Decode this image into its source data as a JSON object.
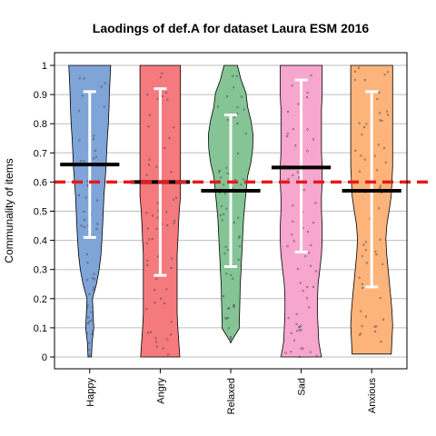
{
  "chart_data": {
    "type": "violin",
    "title": "Laodings of def.A for dataset Laura ESM 2016",
    "xlabel": "",
    "ylabel": "Communality of items",
    "ylim": [
      0,
      1
    ],
    "yticks": [
      "0",
      "0.1",
      "0.2",
      "0.3",
      "0.4",
      "0.5",
      "0.6",
      "0.7",
      "0.8",
      "0.9",
      "1"
    ],
    "grid": true,
    "reference_line": {
      "value": 0.6,
      "color": "#e41a1c",
      "style": "dashed"
    },
    "categories": [
      "Happy",
      "Angry",
      "Relaxed",
      "Sad",
      "Anxious"
    ],
    "series": [
      {
        "category": "Happy",
        "color": "#7fa4d8",
        "mean": 0.66,
        "ci_low": 0.41,
        "ci_high": 0.91,
        "min": 0.0,
        "max": 1.0,
        "density": [
          0.05,
          0.07,
          0.12,
          0.1,
          0.08,
          0.2,
          0.28,
          0.33,
          0.36,
          0.38,
          0.4,
          0.42,
          0.45,
          0.48,
          0.5,
          0.52,
          0.55,
          0.57,
          0.58,
          0.6,
          0.62
        ]
      },
      {
        "category": "Angry",
        "color": "#f57a7e",
        "mean": 0.6,
        "ci_low": 0.28,
        "ci_high": 0.92,
        "min": 0.0,
        "max": 1.0,
        "density": [
          0.58,
          0.55,
          0.52,
          0.5,
          0.5,
          0.5,
          0.5,
          0.5,
          0.52,
          0.54,
          0.56,
          0.6,
          0.6,
          0.6,
          0.6,
          0.6,
          0.6,
          0.6,
          0.6,
          0.6,
          0.6
        ]
      },
      {
        "category": "Relaxed",
        "color": "#85c595",
        "mean": 0.57,
        "ci_low": 0.31,
        "ci_high": 0.83,
        "min": 0.05,
        "max": 1.0,
        "density": [
          0.0,
          0.25,
          0.26,
          0.27,
          0.28,
          0.3,
          0.32,
          0.34,
          0.36,
          0.38,
          0.42,
          0.46,
          0.5,
          0.6,
          0.65,
          0.66,
          0.6,
          0.5,
          0.45,
          0.3,
          0.2
        ]
      },
      {
        "category": "Sad",
        "color": "#f7a6ce",
        "mean": 0.65,
        "ci_low": 0.36,
        "ci_high": 0.95,
        "min": 0.0,
        "max": 1.0,
        "density": [
          0.6,
          0.52,
          0.5,
          0.48,
          0.48,
          0.5,
          0.55,
          0.6,
          0.62,
          0.62,
          0.6,
          0.6,
          0.62,
          0.62,
          0.6,
          0.6,
          0.6,
          0.6,
          0.62,
          0.62,
          0.62
        ]
      },
      {
        "category": "Anxious",
        "color": "#fdb47b",
        "mean": 0.57,
        "ci_low": 0.24,
        "ci_high": 0.91,
        "min": 0.01,
        "max": 1.0,
        "density": [
          0.58,
          0.6,
          0.62,
          0.6,
          0.56,
          0.52,
          0.48,
          0.44,
          0.42,
          0.45,
          0.52,
          0.58,
          0.6,
          0.62,
          0.62,
          0.62,
          0.62,
          0.62,
          0.62,
          0.62,
          0.62
        ]
      }
    ]
  }
}
